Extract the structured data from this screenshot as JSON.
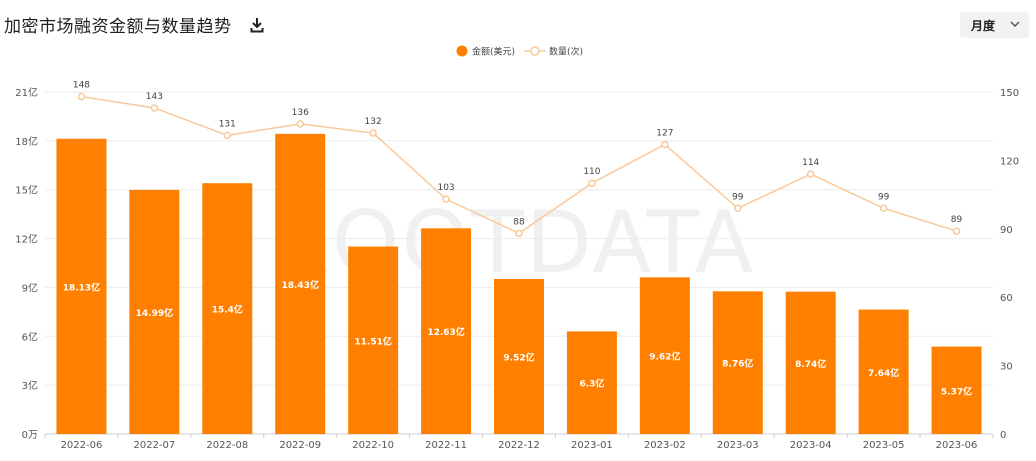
{
  "header": {
    "title": "加密市场融资金额与数量趋势",
    "period": "月度",
    "download_icon": "download-icon",
    "chevron_icon": "chevron-down-icon"
  },
  "watermark": "ROOTDATA",
  "colors": {
    "bar": "#ff8000",
    "line": "#f8c99a",
    "grid": "#ececec",
    "axis": "#cccccc"
  },
  "chart_data": {
    "type": "bar",
    "categories": [
      "2022-06",
      "2022-07",
      "2022-08",
      "2022-09",
      "2022-10",
      "2022-11",
      "2022-12",
      "2023-01",
      "2023-02",
      "2023-03",
      "2023-04",
      "2023-05",
      "2023-06"
    ],
    "series": [
      {
        "name": "金额(美元)",
        "type": "bar",
        "axis": "left",
        "values": [
          18.13,
          14.99,
          15.4,
          18.43,
          11.51,
          12.63,
          9.52,
          6.3,
          9.62,
          8.76,
          8.74,
          7.64,
          5.37
        ],
        "labels": [
          "18.13亿",
          "14.99亿",
          "15.4亿",
          "18.43亿",
          "11.51亿",
          "12.63亿",
          "9.52亿",
          "6.3亿",
          "9.62亿",
          "8.76亿",
          "8.74亿",
          "7.64亿",
          "5.37亿"
        ]
      },
      {
        "name": "数量(次)",
        "type": "line",
        "axis": "right",
        "values": [
          148,
          143,
          131,
          136,
          132,
          103,
          88,
          110,
          127,
          99,
          114,
          99,
          89
        ]
      }
    ],
    "y_left": {
      "ylim": [
        0,
        21
      ],
      "ticks": [
        "0万",
        "3亿",
        "6亿",
        "9亿",
        "12亿",
        "15亿",
        "18亿",
        "21亿"
      ]
    },
    "y_right": {
      "ylim": [
        0,
        150
      ],
      "ticks": [
        "0",
        "30",
        "60",
        "90",
        "120",
        "150"
      ]
    },
    "legend_position": "top-center",
    "grid": true
  }
}
